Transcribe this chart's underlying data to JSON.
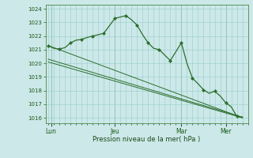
{
  "background_color": "#cce8e8",
  "grid_color": "#99cccc",
  "line_color": "#2d6e2d",
  "marker_color": "#2d6e2d",
  "ylabel_ticks": [
    1016,
    1017,
    1018,
    1019,
    1020,
    1021,
    1022,
    1023,
    1024
  ],
  "ylim": [
    1015.6,
    1024.3
  ],
  "xlabel": "Pression niveau de la mer( hPa )",
  "day_labels": [
    "Lun",
    "Jeu",
    "Mar",
    "Mer"
  ],
  "day_positions": [
    0.5,
    12,
    24,
    32
  ],
  "xlim": [
    -0.5,
    36
  ],
  "straight_lines": [
    {
      "x": [
        0,
        35
      ],
      "y": [
        1021.3,
        1016.0
      ]
    },
    {
      "x": [
        0,
        35
      ],
      "y": [
        1020.3,
        1016.05
      ]
    },
    {
      "x": [
        0,
        35
      ],
      "y": [
        1020.1,
        1016.0
      ]
    }
  ],
  "main_x": [
    0,
    1,
    2,
    3,
    4,
    5,
    6,
    7,
    8,
    9,
    10,
    11,
    12,
    13,
    14,
    15,
    16,
    17,
    18,
    19,
    20,
    21,
    22,
    23,
    24,
    25,
    26,
    27,
    28,
    29,
    30,
    31,
    32,
    33,
    34,
    35
  ],
  "main_y": [
    1021.3,
    1021.1,
    1021.05,
    1021.15,
    1021.5,
    1021.7,
    1021.75,
    1021.9,
    1022.0,
    1022.1,
    1022.2,
    1022.75,
    1023.3,
    1023.4,
    1023.5,
    1023.2,
    1022.8,
    1022.1,
    1021.5,
    1021.1,
    1021.0,
    1020.6,
    1020.2,
    1020.85,
    1021.5,
    1020.0,
    1018.9,
    1018.5,
    1018.05,
    1017.8,
    1017.95,
    1017.6,
    1017.1,
    1016.8,
    1016.1,
    1016.05
  ],
  "marker_x": [
    0,
    2,
    4,
    6,
    8,
    10,
    12,
    14,
    16,
    18,
    20,
    22,
    24,
    26,
    28,
    30,
    32,
    34
  ],
  "marker_y": [
    1021.3,
    1021.05,
    1021.5,
    1021.75,
    1022.0,
    1022.2,
    1023.3,
    1023.5,
    1022.8,
    1021.5,
    1021.0,
    1020.2,
    1021.5,
    1018.9,
    1018.05,
    1017.95,
    1017.1,
    1016.1
  ]
}
